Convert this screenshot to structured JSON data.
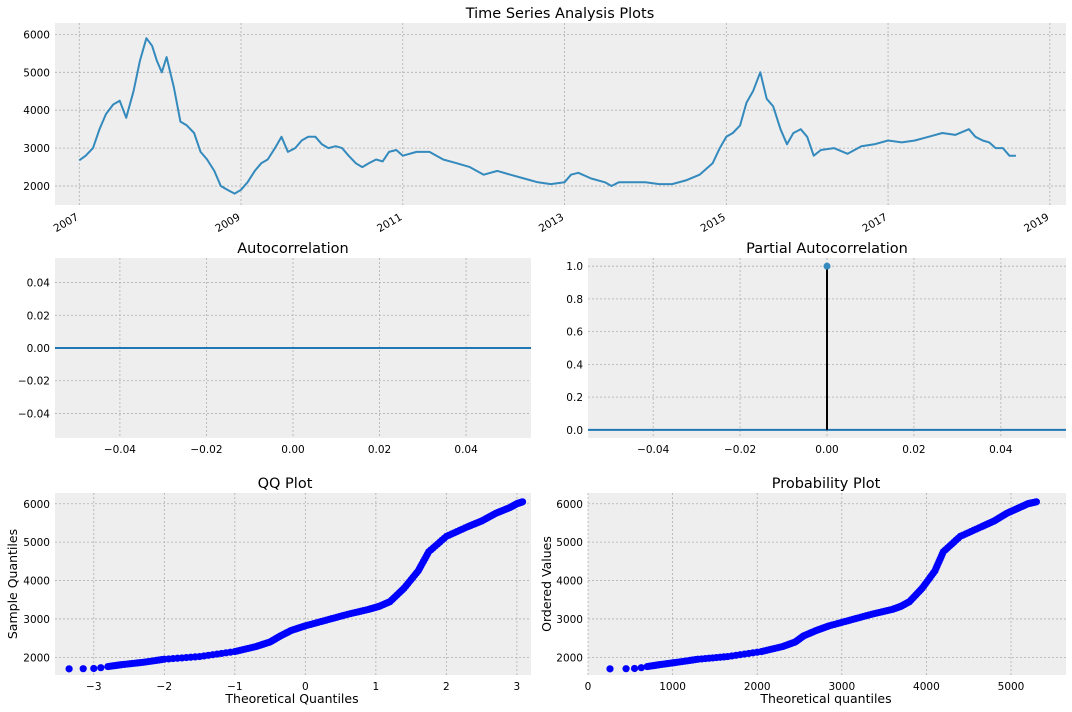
{
  "chart_data": [
    {
      "id": "ts",
      "type": "line",
      "title": "Time Series Analysis Plots",
      "xlabel": "",
      "ylabel": "",
      "xlim": [
        2006.7,
        2019.2
      ],
      "ylim": [
        1500,
        6300
      ],
      "xticks": [
        2007,
        2009,
        2011,
        2013,
        2015,
        2017,
        2019
      ],
      "xtick_labels": [
        "2007",
        "2009",
        "2011",
        "2013",
        "2015",
        "2017",
        "2019"
      ],
      "yticks": [
        2000,
        3000,
        4000,
        5000,
        6000
      ],
      "ytick_labels": [
        "2000",
        "3000",
        "4000",
        "5000",
        "6000"
      ],
      "grid": true,
      "series": [
        {
          "color": "#348abd",
          "x": [
            2007.0,
            2007.08,
            2007.17,
            2007.25,
            2007.33,
            2007.42,
            2007.5,
            2007.58,
            2007.67,
            2007.75,
            2007.83,
            2007.9,
            2007.96,
            2008.02,
            2008.08,
            2008.17,
            2008.25,
            2008.33,
            2008.42,
            2008.5,
            2008.58,
            2008.67,
            2008.75,
            2008.83,
            2008.92,
            2009.0,
            2009.08,
            2009.17,
            2009.25,
            2009.33,
            2009.42,
            2009.5,
            2009.58,
            2009.67,
            2009.75,
            2009.83,
            2009.92,
            2010.0,
            2010.08,
            2010.17,
            2010.25,
            2010.33,
            2010.42,
            2010.5,
            2010.58,
            2010.67,
            2010.75,
            2010.83,
            2010.92,
            2011.0,
            2011.17,
            2011.33,
            2011.5,
            2011.67,
            2011.83,
            2012.0,
            2012.17,
            2012.33,
            2012.5,
            2012.67,
            2012.83,
            2013.0,
            2013.08,
            2013.17,
            2013.33,
            2013.5,
            2013.58,
            2013.67,
            2013.83,
            2014.0,
            2014.17,
            2014.33,
            2014.5,
            2014.67,
            2014.75,
            2014.83,
            2014.92,
            2015.0,
            2015.08,
            2015.17,
            2015.25,
            2015.33,
            2015.42,
            2015.5,
            2015.58,
            2015.67,
            2015.75,
            2015.83,
            2015.92,
            2016.0,
            2016.08,
            2016.17,
            2016.33,
            2016.5,
            2016.67,
            2016.83,
            2017.0,
            2017.17,
            2017.33,
            2017.5,
            2017.67,
            2017.83,
            2018.0,
            2018.08,
            2018.17,
            2018.25,
            2018.33,
            2018.42,
            2018.5,
            2018.58
          ],
          "y": [
            2680,
            2800,
            3000,
            3500,
            3900,
            4150,
            4250,
            3800,
            4500,
            5300,
            5900,
            5700,
            5300,
            5000,
            5400,
            4600,
            3700,
            3600,
            3400,
            2900,
            2700,
            2400,
            2000,
            1900,
            1800,
            1900,
            2100,
            2400,
            2600,
            2700,
            3000,
            3300,
            2900,
            3000,
            3200,
            3300,
            3300,
            3100,
            3000,
            3050,
            3000,
            2800,
            2600,
            2500,
            2600,
            2700,
            2650,
            2900,
            2950,
            2800,
            2900,
            2900,
            2700,
            2600,
            2500,
            2300,
            2400,
            2300,
            2200,
            2100,
            2050,
            2100,
            2300,
            2350,
            2200,
            2100,
            2000,
            2100,
            2100,
            2100,
            2050,
            2050,
            2150,
            2300,
            2450,
            2600,
            3000,
            3300,
            3400,
            3600,
            4200,
            4500,
            5000,
            4300,
            4100,
            3500,
            3100,
            3400,
            3500,
            3300,
            2800,
            2950,
            3000,
            2850,
            3050,
            3100,
            3200,
            3150,
            3200,
            3300,
            3400,
            3350,
            3500,
            3300,
            3200,
            3150,
            3000,
            3000,
            2800,
            2800
          ]
        }
      ]
    },
    {
      "id": "acf",
      "type": "line",
      "title": "Autocorrelation",
      "xlim": [
        -0.055,
        0.055
      ],
      "ylim": [
        -0.055,
        0.055
      ],
      "xticks": [
        -0.04,
        -0.02,
        0.0,
        0.02,
        0.04
      ],
      "xtick_labels": [
        "−0.04",
        "−0.02",
        "0.00",
        "0.02",
        "0.04"
      ],
      "yticks": [
        -0.04,
        -0.02,
        0.0,
        0.02,
        0.04
      ],
      "ytick_labels": [
        "−0.04",
        "−0.02",
        "0.00",
        "0.02",
        "0.04"
      ],
      "grid": true,
      "baseline": 0.0
    },
    {
      "id": "pacf",
      "type": "stem",
      "title": "Partial Autocorrelation",
      "xlim": [
        -0.055,
        0.055
      ],
      "ylim": [
        -0.05,
        1.05
      ],
      "xticks": [
        -0.04,
        -0.02,
        0.0,
        0.02,
        0.04
      ],
      "xtick_labels": [
        "−0.04",
        "−0.02",
        "0.00",
        "0.02",
        "0.04"
      ],
      "yticks": [
        0.0,
        0.2,
        0.4,
        0.6,
        0.8,
        1.0
      ],
      "ytick_labels": [
        "0.0",
        "0.2",
        "0.4",
        "0.6",
        "0.8",
        "1.0"
      ],
      "grid": true,
      "baseline": 0.0,
      "stems": [
        {
          "x": 0.0,
          "y": 1.0
        }
      ]
    },
    {
      "id": "qq",
      "type": "scatter",
      "title": "QQ Plot",
      "xlabel": "Theoretical Quantiles",
      "ylabel": "Sample Quantiles",
      "xlim": [
        -3.55,
        3.2
      ],
      "ylim": [
        1540,
        6280
      ],
      "xticks": [
        -3,
        -2,
        -1,
        0,
        1,
        2,
        3
      ],
      "xtick_labels": [
        "−3",
        "−2",
        "−1",
        "0",
        "1",
        "2",
        "3"
      ],
      "yticks": [
        2000,
        3000,
        4000,
        5000,
        6000
      ],
      "ytick_labels": [
        "2000",
        "3000",
        "4000",
        "5000",
        "6000"
      ],
      "grid": true,
      "points": {
        "x": [
          -3.35,
          -3.15,
          -3.0,
          -2.9,
          -2.8,
          -2.6,
          -2.3,
          -2.0,
          -1.5,
          -1.0,
          -0.7,
          -0.5,
          -0.35,
          -0.2,
          0.0,
          0.3,
          0.6,
          0.9,
          1.05,
          1.2,
          1.4,
          1.6,
          1.75,
          2.0,
          2.3,
          2.5,
          2.7,
          2.9,
          3.0,
          3.08
        ],
        "y": [
          1700,
          1705,
          1710,
          1730,
          1760,
          1810,
          1870,
          1950,
          2020,
          2150,
          2280,
          2400,
          2560,
          2700,
          2820,
          2970,
          3120,
          3250,
          3330,
          3450,
          3800,
          4250,
          4750,
          5150,
          5400,
          5550,
          5750,
          5900,
          6000,
          6050
        ]
      }
    },
    {
      "id": "prob",
      "type": "scatter",
      "title": "Probability Plot",
      "xlabel": "Theoretical quantiles",
      "ylabel": "Ordered Values",
      "xlim": [
        0,
        5650
      ],
      "ylim": [
        1540,
        6280
      ],
      "xticks": [
        0,
        1000,
        2000,
        3000,
        4000,
        5000
      ],
      "xtick_labels": [
        "0",
        "1000",
        "2000",
        "3000",
        "4000",
        "5000"
      ],
      "yticks": [
        2000,
        3000,
        4000,
        5000,
        6000
      ],
      "ytick_labels": [
        "2000",
        "3000",
        "4000",
        "5000",
        "6000"
      ],
      "grid": true,
      "points": {
        "x": [
          260,
          450,
          550,
          630,
          700,
          850,
          1050,
          1300,
          1650,
          2050,
          2300,
          2450,
          2550,
          2700,
          2850,
          3100,
          3350,
          3600,
          3700,
          3800,
          3950,
          4100,
          4200,
          4400,
          4650,
          4800,
          4950,
          5100,
          5200,
          5300
        ],
        "y": [
          1700,
          1705,
          1710,
          1730,
          1760,
          1810,
          1870,
          1950,
          2020,
          2150,
          2280,
          2400,
          2560,
          2700,
          2820,
          2970,
          3120,
          3250,
          3330,
          3450,
          3800,
          4250,
          4750,
          5150,
          5400,
          5550,
          5750,
          5900,
          6000,
          6050
        ]
      }
    }
  ]
}
